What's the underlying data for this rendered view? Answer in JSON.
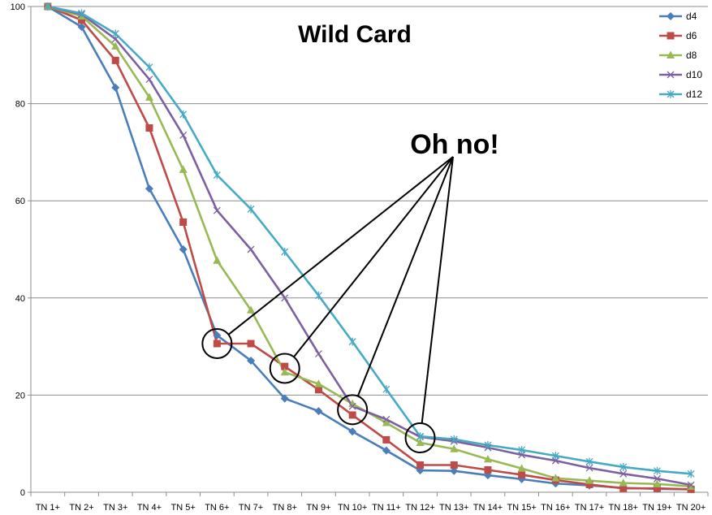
{
  "chart_data": {
    "type": "line",
    "title": "Wild Card",
    "xlabel": "",
    "ylabel": "",
    "ylim": [
      0,
      100
    ],
    "yticks": [
      0,
      20,
      40,
      60,
      80,
      100
    ],
    "grid": "horizontal",
    "legend_position": "top-right",
    "categories": [
      "TN 1+",
      "TN 2+",
      "TN 3+",
      "TN 4+",
      "TN 5+",
      "TN 6+",
      "TN 7+",
      "TN 8+",
      "TN 9+",
      "TN 10+",
      "TN 11+",
      "TN 12+",
      "TN 13+",
      "TN 14+",
      "TN 15+",
      "TN 16+",
      "TN 17+",
      "TN 18+",
      "TN 19+",
      "TN 20+"
    ],
    "series": [
      {
        "name": "d4",
        "color": "#4a7ebb",
        "marker": "diamond",
        "values": [
          100,
          95.8,
          83.3,
          62.5,
          50,
          32.3,
          27.1,
          19.3,
          16.7,
          12.5,
          8.6,
          4.5,
          4.4,
          3.5,
          2.7,
          1.8,
          1.4,
          0.9,
          0.7,
          0.6
        ]
      },
      {
        "name": "d6",
        "color": "#be4b48",
        "marker": "square",
        "values": [
          100,
          97.2,
          88.9,
          75,
          55.6,
          30.6,
          30.6,
          25.9,
          21.1,
          15.9,
          10.8,
          5.6,
          5.6,
          4.6,
          3.6,
          2.5,
          1.6,
          0.8,
          0.8,
          0.6
        ]
      },
      {
        "name": "d8",
        "color": "#98b954",
        "marker": "triangle",
        "values": [
          100,
          98,
          91.8,
          81.3,
          66.4,
          47.7,
          37.5,
          24.7,
          22.3,
          18.2,
          14.3,
          10.2,
          8.9,
          6.8,
          4.9,
          2.9,
          2.4,
          1.9,
          1.7,
          1.2
        ]
      },
      {
        "name": "d10",
        "color": "#7d60a0",
        "marker": "x",
        "values": [
          100,
          98.4,
          93.3,
          85,
          73.5,
          58,
          50,
          40,
          28.5,
          17.7,
          15,
          11.4,
          10.5,
          9.2,
          7.7,
          6.5,
          5,
          3.8,
          2.8,
          1.5
        ]
      },
      {
        "name": "d12",
        "color": "#46aac5",
        "marker": "star",
        "values": [
          100,
          98.6,
          94.4,
          87.5,
          77.8,
          65.3,
          58.3,
          49.5,
          40.5,
          31,
          21.2,
          11.5,
          10.9,
          9.7,
          8.7,
          7.5,
          6.3,
          5.2,
          4.4,
          3.8
        ]
      }
    ],
    "annotations": [
      {
        "text": "Oh no!",
        "circled_points": [
          {
            "category": "TN 6+",
            "value": 30.6
          },
          {
            "category": "TN 8+",
            "value": 25.5
          },
          {
            "category": "TN 10+",
            "value": 17
          },
          {
            "category": "TN 12+",
            "value": 11.2
          }
        ]
      }
    ]
  }
}
